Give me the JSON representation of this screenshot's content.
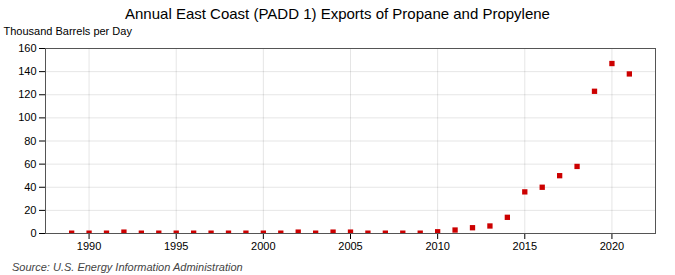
{
  "chart_data": {
    "type": "scatter",
    "title": "Annual East Coast (PADD 1) Exports of Propane and Propylene",
    "ylabel": "Thousand Barrels per Day",
    "source": "Source: U.S. Energy Information Administration",
    "x": [
      1989,
      1990,
      1991,
      1992,
      1993,
      1994,
      1995,
      1996,
      1997,
      1998,
      1999,
      2000,
      2001,
      2002,
      2003,
      2004,
      2005,
      2006,
      2007,
      2008,
      2009,
      2010,
      2011,
      2012,
      2013,
      2014,
      2015,
      2016,
      2017,
      2018,
      2019,
      2020,
      2021
    ],
    "values": [
      0.3,
      0.3,
      0.3,
      1.2,
      0.3,
      0.3,
      0.3,
      0.3,
      0.3,
      0.3,
      0.3,
      0.3,
      0.3,
      1.2,
      0.3,
      1.2,
      1.2,
      0.3,
      0.3,
      0.3,
      0.3,
      1.5,
      3.0,
      5.0,
      6.5,
      14.0,
      36.0,
      40.0,
      50.0,
      58.0,
      123.0,
      147.0,
      138.0
    ],
    "color": "#cc0000",
    "marker": "square",
    "xlim": [
      1987.5,
      2022.5
    ],
    "ylim": [
      0,
      160
    ],
    "xticks": [
      1990,
      1995,
      2000,
      2005,
      2010,
      2015,
      2020
    ],
    "yticks": [
      0,
      20,
      40,
      60,
      80,
      100,
      120,
      140,
      160
    ],
    "grid": true
  }
}
